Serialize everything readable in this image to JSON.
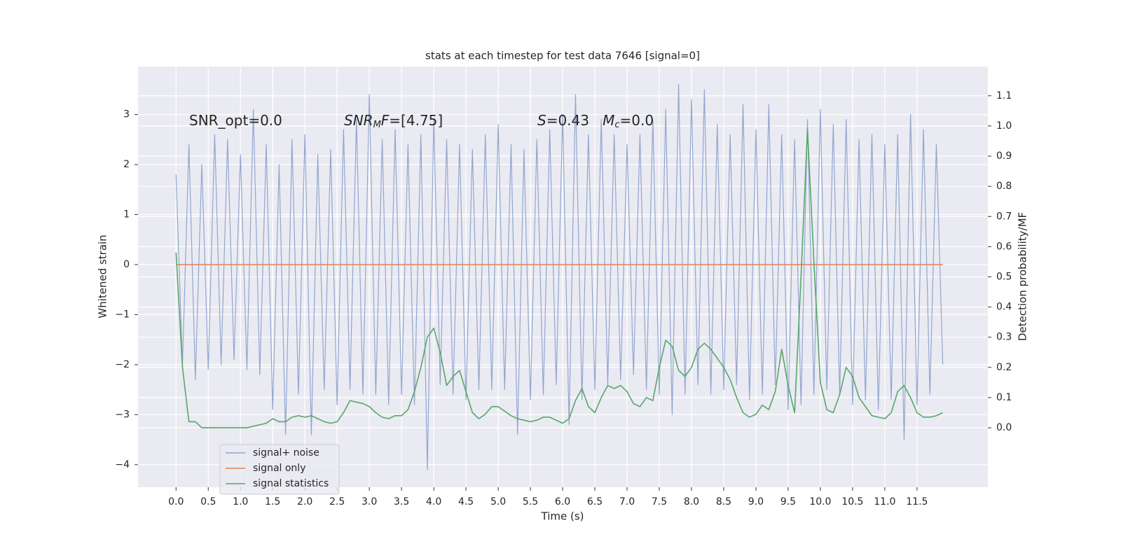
{
  "chart_data": {
    "type": "line",
    "title": "stats at each timestep for test data 7646 [signal=0]",
    "xlabel": "Time (s)",
    "ylabel": "Whitened strain",
    "y2label": "Detection probability/MF",
    "xlim": [
      -0.59,
      12.6
    ],
    "ylim": [
      -4.45,
      3.96
    ],
    "y2lim": [
      -0.197,
      1.197
    ],
    "xticks": [
      {
        "value": 0,
        "label": "0.0"
      },
      0.5,
      {
        "value": 1,
        "label": "1.0"
      },
      1.5,
      {
        "value": 2,
        "label": "2.0"
      },
      2.5,
      {
        "value": 3,
        "label": "3.0"
      },
      3.5,
      {
        "value": 4,
        "label": "4.0"
      },
      4.5,
      {
        "value": 5,
        "label": "5.0"
      },
      5.5,
      {
        "value": 6,
        "label": "6.0"
      },
      6.5,
      {
        "value": 7,
        "label": "7.0"
      },
      7.5,
      {
        "value": 8,
        "label": "8.0"
      },
      8.5,
      {
        "value": 9,
        "label": "9.0"
      },
      9.5,
      {
        "value": 10,
        "label": "10.0"
      },
      10.5,
      {
        "value": 11,
        "label": "11.0"
      },
      11.5
    ],
    "yticks": [
      {
        "value": -4,
        "label": "−4"
      },
      {
        "value": -3,
        "label": "−3"
      },
      {
        "value": -2,
        "label": "−2"
      },
      {
        "value": -1,
        "label": "−1"
      },
      0,
      1,
      2,
      3
    ],
    "y2ticks": [
      {
        "value": 0,
        "label": "0.0"
      },
      0.1,
      0.2,
      0.3,
      0.4,
      0.5,
      0.6,
      0.7,
      0.8,
      0.9,
      {
        "value": 1,
        "label": "1.0"
      },
      1.1
    ],
    "grid": true,
    "legend": "lower left",
    "x": [
      0,
      0.1,
      0.2,
      0.3,
      0.4,
      0.5,
      0.6,
      0.7,
      0.8,
      0.9,
      1,
      1.1,
      1.2,
      1.3,
      1.4,
      1.5,
      1.6,
      1.7,
      1.8,
      1.9,
      2,
      2.1,
      2.2,
      2.3,
      2.4,
      2.5,
      2.6,
      2.7,
      2.8,
      2.9,
      3,
      3.1,
      3.2,
      3.3,
      3.4,
      3.5,
      3.6,
      3.7,
      3.8,
      3.9,
      4,
      4.1,
      4.2,
      4.3,
      4.4,
      4.5,
      4.6,
      4.7,
      4.8,
      4.9,
      5,
      5.1,
      5.2,
      5.3,
      5.4,
      5.5,
      5.6,
      5.7,
      5.8,
      5.9,
      6,
      6.1,
      6.2,
      6.3,
      6.4,
      6.5,
      6.6,
      6.7,
      6.8,
      6.9,
      7,
      7.1,
      7.2,
      7.3,
      7.4,
      7.5,
      7.6,
      7.7,
      7.8,
      7.9,
      8,
      8.1,
      8.2,
      8.3,
      8.4,
      8.5,
      8.6,
      8.7,
      8.8,
      8.9,
      9,
      9.1,
      9.2,
      9.3,
      9.4,
      9.5,
      9.6,
      9.7,
      9.8,
      9.9,
      10,
      10.1,
      10.2,
      10.3,
      10.4,
      10.5,
      10.6,
      10.7,
      10.8,
      10.9,
      11,
      11.1,
      11.2,
      11.3,
      11.4,
      11.5,
      11.6,
      11.7,
      11.8,
      11.9
    ],
    "series": [
      {
        "name": "signal+ noise",
        "color": "#92a6cf",
        "values": [
          1.8,
          -2.0,
          2.4,
          -2.3,
          2.0,
          -2.1,
          2.6,
          -2.0,
          2.5,
          -1.9,
          2.2,
          -2.1,
          3.1,
          -2.2,
          2.4,
          -2.9,
          2.0,
          -3.4,
          2.5,
          -2.6,
          2.6,
          -3.4,
          2.2,
          -2.5,
          2.3,
          -2.8,
          2.7,
          -2.5,
          2.9,
          -2.6,
          3.4,
          -2.6,
          2.5,
          -2.8,
          2.7,
          -2.6,
          2.4,
          -2.8,
          2.6,
          -4.1,
          2.9,
          -2.4,
          2.5,
          -2.6,
          2.4,
          -2.7,
          2.3,
          -2.5,
          2.6,
          -2.5,
          2.8,
          -2.5,
          2.4,
          -3.4,
          2.3,
          -2.7,
          2.5,
          -2.6,
          2.7,
          -2.4,
          3.0,
          -3.2,
          3.4,
          -2.7,
          2.6,
          -2.5,
          2.9,
          -2.4,
          2.6,
          -2.3,
          2.4,
          -2.2,
          2.6,
          -2.5,
          2.9,
          -2.6,
          3.1,
          -3.0,
          3.6,
          -2.6,
          3.3,
          -2.4,
          3.5,
          -2.6,
          2.8,
          -2.5,
          2.6,
          -2.4,
          3.2,
          -2.7,
          2.7,
          -2.6,
          3.2,
          -2.4,
          2.6,
          -2.9,
          2.5,
          -2.8,
          2.9,
          -2.6,
          3.1,
          -2.5,
          2.8,
          -2.6,
          2.9,
          -2.8,
          2.5,
          -2.7,
          2.6,
          -2.9,
          2.4,
          -2.7,
          2.6,
          -3.5,
          3.0,
          -2.8,
          2.7,
          -2.6,
          2.4,
          -2.0
        ]
      },
      {
        "name": "signal only",
        "color": "#dd8452",
        "values": [
          0,
          0,
          0,
          0,
          0,
          0,
          0,
          0,
          0,
          0,
          0,
          0,
          0,
          0,
          0,
          0,
          0,
          0,
          0,
          0,
          0,
          0,
          0,
          0,
          0,
          0,
          0,
          0,
          0,
          0,
          0,
          0,
          0,
          0,
          0,
          0,
          0,
          0,
          0,
          0,
          0,
          0,
          0,
          0,
          0,
          0,
          0,
          0,
          0,
          0,
          0,
          0,
          0,
          0,
          0,
          0,
          0,
          0,
          0,
          0,
          0,
          0,
          0,
          0,
          0,
          0,
          0,
          0,
          0,
          0,
          0,
          0,
          0,
          0,
          0,
          0,
          0,
          0,
          0,
          0,
          0,
          0,
          0,
          0,
          0,
          0,
          0,
          0,
          0,
          0,
          0,
          0,
          0,
          0,
          0,
          0,
          0,
          0,
          0,
          0,
          0,
          0,
          0,
          0,
          0,
          0,
          0,
          0,
          0,
          0,
          0,
          0,
          0,
          0,
          0,
          0,
          0,
          0,
          0,
          0
        ]
      },
      {
        "name": "signal statistics",
        "color": "#55a868",
        "axis": "y2",
        "values": [
          0.58,
          0.2,
          0.02,
          0.02,
          0.0,
          0.0,
          0.0,
          0.0,
          0.0,
          0.0,
          0.0,
          0.0,
          0.005,
          0.01,
          0.015,
          0.03,
          0.02,
          0.02,
          0.035,
          0.04,
          0.035,
          0.04,
          0.03,
          0.02,
          0.015,
          0.02,
          0.05,
          0.09,
          0.085,
          0.08,
          0.07,
          0.05,
          0.035,
          0.03,
          0.04,
          0.04,
          0.06,
          0.12,
          0.2,
          0.3,
          0.33,
          0.25,
          0.14,
          0.17,
          0.19,
          0.12,
          0.05,
          0.03,
          0.045,
          0.07,
          0.07,
          0.055,
          0.04,
          0.03,
          0.025,
          0.02,
          0.025,
          0.035,
          0.035,
          0.025,
          0.015,
          0.03,
          0.09,
          0.13,
          0.07,
          0.05,
          0.1,
          0.14,
          0.13,
          0.14,
          0.12,
          0.08,
          0.07,
          0.1,
          0.09,
          0.2,
          0.29,
          0.27,
          0.19,
          0.17,
          0.2,
          0.26,
          0.28,
          0.26,
          0.23,
          0.2,
          0.16,
          0.1,
          0.05,
          0.035,
          0.045,
          0.075,
          0.06,
          0.12,
          0.26,
          0.14,
          0.05,
          0.5,
          0.99,
          0.55,
          0.15,
          0.06,
          0.05,
          0.11,
          0.2,
          0.17,
          0.1,
          0.07,
          0.04,
          0.035,
          0.03,
          0.05,
          0.12,
          0.14,
          0.1,
          0.05,
          0.035,
          0.035,
          0.04,
          0.05
        ]
      }
    ],
    "annotations": [
      {
        "segments": [
          {
            "text": "SNR_opt=0.0",
            "style": "normal"
          }
        ]
      },
      {
        "segments": [
          {
            "text": "SNR",
            "style": "italic"
          },
          {
            "text": "M",
            "style": "sub"
          },
          {
            "text": "F",
            "style": "italic"
          },
          {
            "text": "=[4.75]",
            "style": "normal"
          }
        ]
      },
      {
        "segments": [
          {
            "text": "S",
            "style": "italic"
          },
          {
            "text": "=0.43   ",
            "style": "normal"
          },
          {
            "text": "M",
            "style": "italic"
          },
          {
            "text": "c",
            "style": "sub"
          },
          {
            "text": "=0.0",
            "style": "normal"
          }
        ]
      }
    ]
  }
}
